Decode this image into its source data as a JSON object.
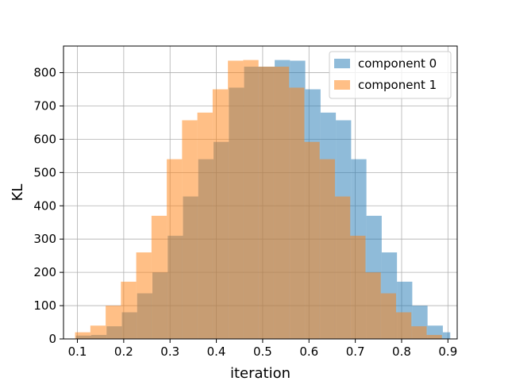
{
  "chart_data": {
    "type": "bar",
    "histogram": true,
    "xlabel": "iteration",
    "ylabel": "KL",
    "xlim": [
      0.07,
      0.92
    ],
    "ylim": [
      0,
      880
    ],
    "xticks": [
      "0.1",
      "0.2",
      "0.3",
      "0.4",
      "0.5",
      "0.6",
      "0.7",
      "0.8",
      "0.9"
    ],
    "yticks": [
      "0",
      "100",
      "200",
      "300",
      "400",
      "500",
      "600",
      "700",
      "800"
    ],
    "grid": true,
    "legend_position": "upper-right",
    "bin_edges": [
      0.095,
      0.128,
      0.161,
      0.194,
      0.227,
      0.26,
      0.293,
      0.326,
      0.359,
      0.392,
      0.425,
      0.458,
      0.491,
      0.524,
      0.557,
      0.59,
      0.623,
      0.656,
      0.689,
      0.722,
      0.755,
      0.788,
      0.821,
      0.854,
      0.887
    ],
    "series": [
      {
        "name": "component 0",
        "color": "#1f77b4",
        "opacity": 0.5,
        "bin_edges": [
          0.097,
          0.13,
          0.163,
          0.196,
          0.229,
          0.262,
          0.295,
          0.328,
          0.361,
          0.394,
          0.427,
          0.46,
          0.493,
          0.526,
          0.559,
          0.592,
          0.625,
          0.658,
          0.691,
          0.724,
          0.757,
          0.79,
          0.823,
          0.856,
          0.889,
          0.905
        ],
        "values": [
          10,
          12,
          38,
          80,
          137,
          200,
          310,
          428,
          540,
          592,
          755,
          818,
          818,
          838,
          836,
          750,
          680,
          657,
          540,
          370,
          260,
          172,
          100,
          40,
          20
        ]
      },
      {
        "name": "component 1",
        "color": "#ff7f0e",
        "opacity": 0.5,
        "values": [
          20,
          40,
          100,
          172,
          260,
          370,
          540,
          657,
          680,
          750,
          836,
          838,
          818,
          818,
          755,
          592,
          540,
          428,
          310,
          200,
          137,
          80,
          38,
          12
        ]
      }
    ]
  }
}
